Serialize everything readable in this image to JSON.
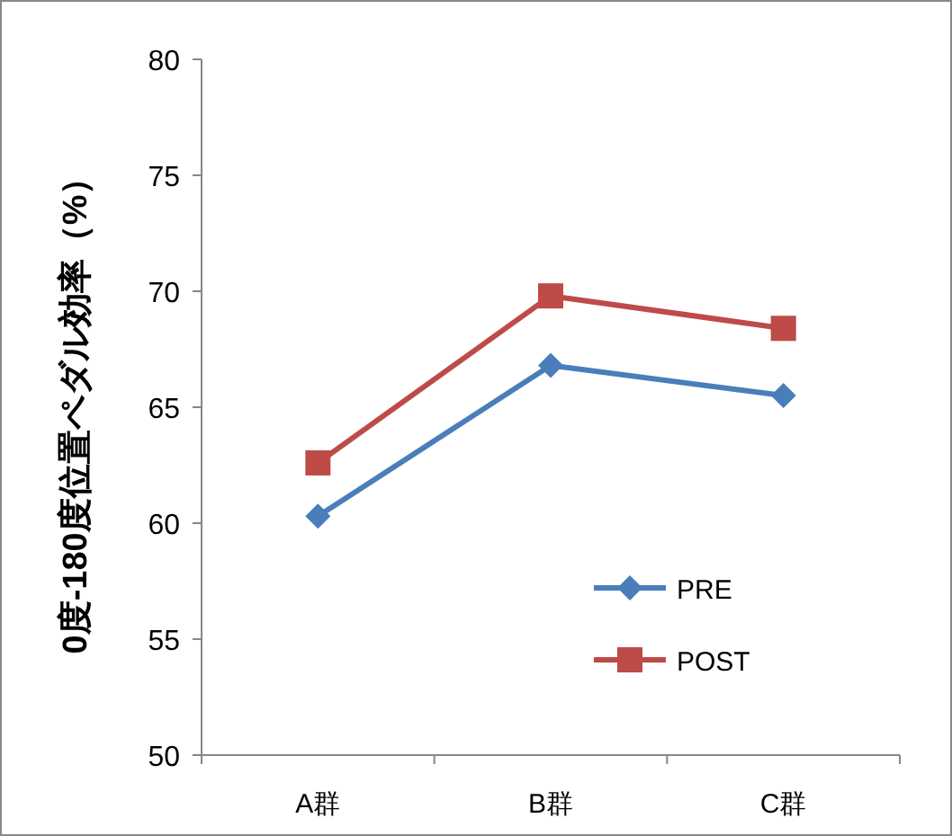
{
  "chart_data": {
    "type": "line",
    "ylabel": "0度-180度位置ペダル効率（%）",
    "categories": [
      "A群",
      "B群",
      "C群"
    ],
    "series": [
      {
        "name": "PRE",
        "color": "#4a7ebb",
        "values": [
          60.3,
          66.8,
          65.5
        ],
        "marker": "diamond"
      },
      {
        "name": "POST",
        "color": "#be4b48",
        "values": [
          62.6,
          69.8,
          68.4
        ],
        "marker": "square"
      }
    ],
    "ylim": [
      50,
      80
    ],
    "yticks": [
      50,
      55,
      60,
      65,
      70,
      75,
      80
    ],
    "grid": false,
    "legend": "bottom right",
    "line_style": "solid"
  }
}
